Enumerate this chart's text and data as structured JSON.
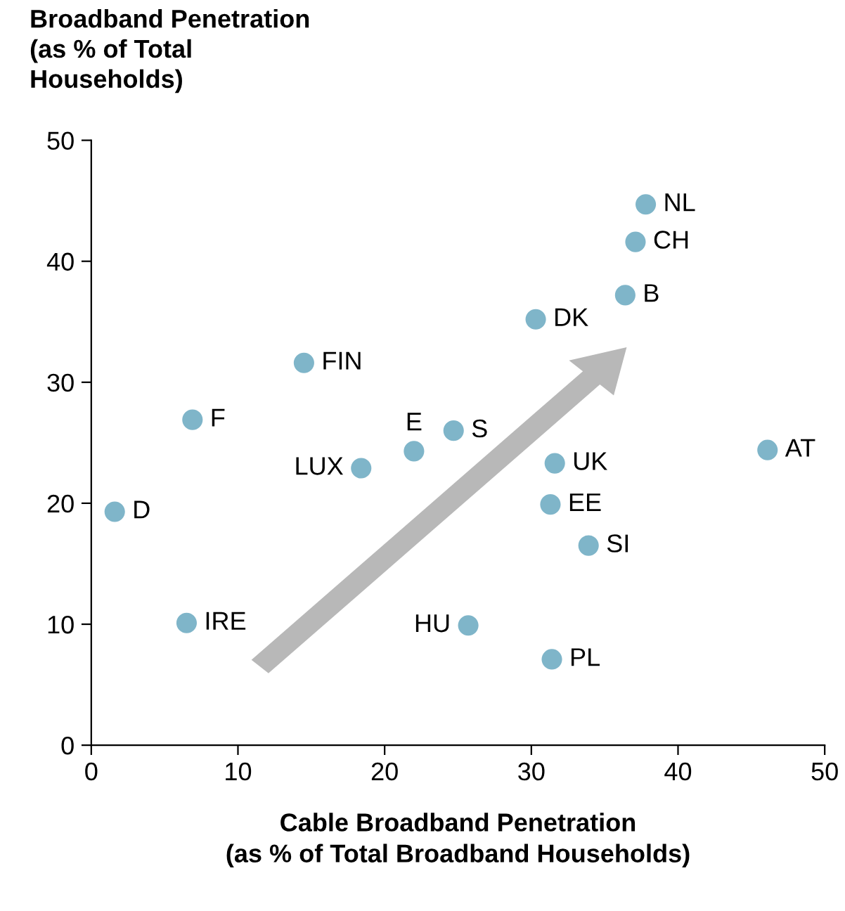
{
  "chart_data": {
    "type": "scatter",
    "ylabel": "Broadband Penetration\n(as % of Total\nHouseholds)",
    "xlabel": "Cable Broadband Penetration\n(as % of Total Broadband Households)",
    "x": [
      1.6,
      6.9,
      6.5,
      14.5,
      18.4,
      22.0,
      24.7,
      25.7,
      30.3,
      31.3,
      31.6,
      31.4,
      33.9,
      36.4,
      37.1,
      37.8,
      46.1
    ],
    "values": [
      19.3,
      26.9,
      10.1,
      31.6,
      22.9,
      24.3,
      26.0,
      9.9,
      35.2,
      19.9,
      23.3,
      7.1,
      16.5,
      37.2,
      41.6,
      44.7,
      24.4
    ],
    "color": "#7fb5c9",
    "marker": "circle",
    "xlim": [
      0,
      50
    ],
    "xticks": [
      0,
      10,
      20,
      30,
      40,
      50
    ],
    "ylim": [
      0,
      50
    ],
    "yticks": [
      0,
      10,
      20,
      30,
      40,
      50
    ],
    "annotations": [
      {
        "text": "D",
        "x": 1.6,
        "y": 19.3
      },
      {
        "text": "F",
        "x": 6.9,
        "y": 26.9
      },
      {
        "text": "IRE",
        "x": 6.5,
        "y": 10.1
      },
      {
        "text": "FIN",
        "x": 14.5,
        "y": 31.6
      },
      {
        "text": "LUX",
        "x": 18.4,
        "y": 22.9
      },
      {
        "text": "E",
        "x": 22.0,
        "y": 24.3
      },
      {
        "text": "S",
        "x": 24.7,
        "y": 26.0
      },
      {
        "text": "HU",
        "x": 25.7,
        "y": 9.9
      },
      {
        "text": "DK",
        "x": 30.3,
        "y": 35.2
      },
      {
        "text": "EE",
        "x": 31.3,
        "y": 19.9
      },
      {
        "text": "UK",
        "x": 31.6,
        "y": 23.3
      },
      {
        "text": "PL",
        "x": 31.4,
        "y": 7.1
      },
      {
        "text": "SI",
        "x": 33.9,
        "y": 16.5
      },
      {
        "text": "B",
        "x": 36.4,
        "y": 37.2
      },
      {
        "text": "CH",
        "x": 37.1,
        "y": 41.6
      },
      {
        "text": "NL",
        "x": 37.8,
        "y": 44.7
      },
      {
        "text": "AT",
        "x": 46.1,
        "y": 24.4
      }
    ]
  }
}
